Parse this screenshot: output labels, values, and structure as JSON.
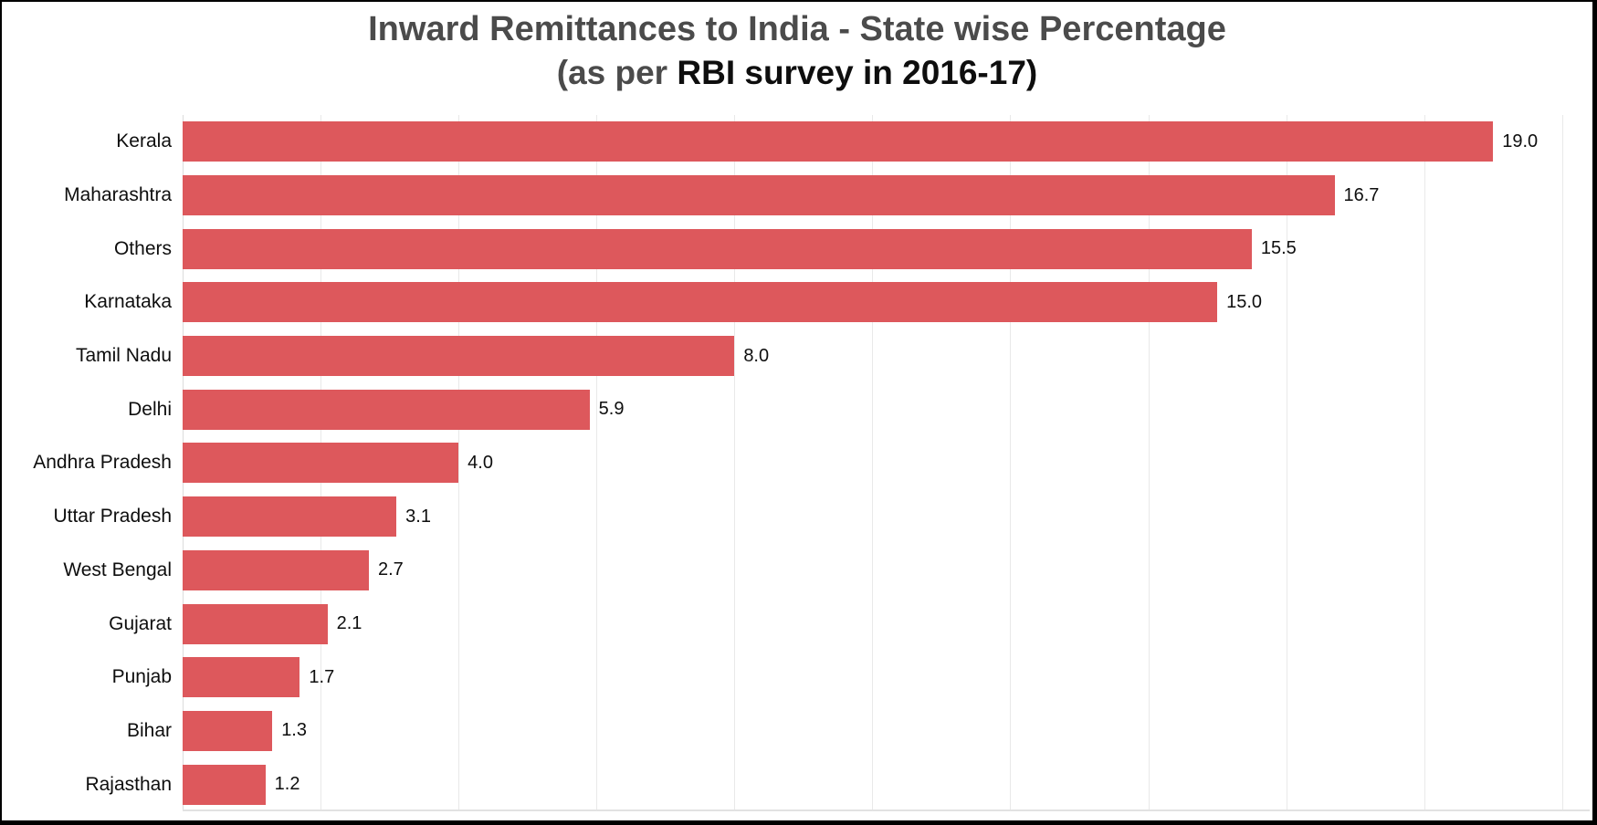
{
  "window": {
    "background": "#ffffff",
    "frame_border_color": "#000000"
  },
  "title": {
    "line1": "Inward Remittances to India - State wise Percentage",
    "line2_prefix": "(as per ",
    "line2_emphasis": "RBI survey in 2016-17)",
    "line1_color": "#4b4b4b",
    "emphasis_color": "#0e0e0e"
  },
  "chart_data": {
    "type": "bar",
    "orientation": "horizontal",
    "title": "Inward Remittances to India - State wise Percentage",
    "subtitle": "(as per RBI survey in 2016-17)",
    "categories": [
      "Kerala",
      "Maharashtra",
      "Others",
      "Karnataka",
      "Tamil Nadu",
      "Delhi",
      "Andhra Pradesh",
      "Uttar Pradesh",
      "West Bengal",
      "Gujarat",
      "Punjab",
      "Bihar",
      "Rajasthan"
    ],
    "values": [
      19.0,
      16.7,
      15.5,
      15.0,
      8.0,
      5.9,
      4.0,
      3.1,
      2.7,
      2.1,
      1.7,
      1.3,
      1.2
    ],
    "value_labels": [
      "19.0",
      "16.7",
      "15.5",
      "15.0",
      "8.0",
      "5.9",
      "4.0",
      "3.1",
      "2.7",
      "2.1",
      "1.7",
      "1.3",
      "1.2"
    ],
    "xlabel": "",
    "ylabel": "",
    "xlim": [
      0,
      20.4
    ],
    "gridline_interval": 2,
    "grid": true,
    "legend_position": "none",
    "bar_color": "#dd585c",
    "gridline_color": "#e9e9e9",
    "zero_line_color": "#dcdcdc",
    "axis_line_color": "#e2e2e2",
    "label_color": "#0e0e0e"
  }
}
